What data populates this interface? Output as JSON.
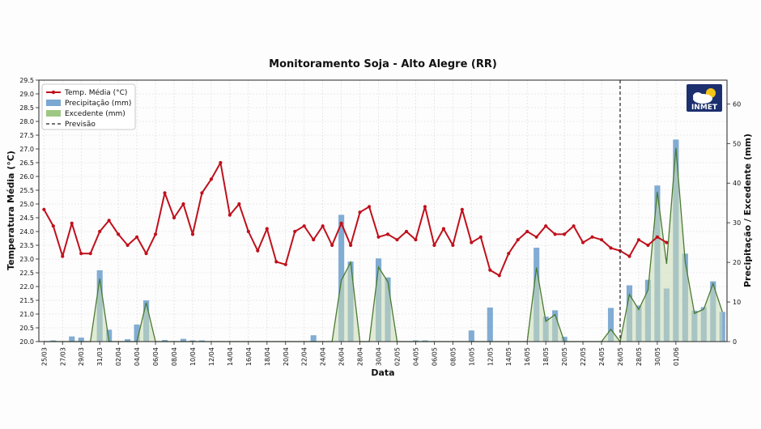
{
  "chart_data": {
    "type": "bar+line",
    "title": "Monitoramento Soja - Alto Alegre (RR)",
    "xlabel": "Data",
    "ylabel_left": "Temperatura Média (°C)",
    "ylabel_right": "Precipitação / Excedente (mm)",
    "ylim_left": [
      20.0,
      29.5
    ],
    "ylim_right": [
      0,
      66
    ],
    "yticks_left": [
      "20.0",
      "20.5",
      "21.0",
      "21.5",
      "22.0",
      "22.5",
      "23.0",
      "23.5",
      "24.0",
      "24.5",
      "25.0",
      "25.5",
      "26.0",
      "26.5",
      "27.0",
      "27.5",
      "28.0",
      "28.5",
      "29.0",
      "29.5"
    ],
    "yticks_right": [
      "0",
      "10",
      "20",
      "30",
      "40",
      "50",
      "60"
    ],
    "x_tick_labels": [
      "25/03",
      "27/03",
      "29/03",
      "31/03",
      "02/04",
      "04/04",
      "06/04",
      "08/04",
      "10/04",
      "12/04",
      "14/04",
      "16/04",
      "18/04",
      "20/04",
      "22/04",
      "24/04",
      "26/04",
      "28/04",
      "30/04",
      "02/05",
      "04/05",
      "06/05",
      "08/05",
      "10/05",
      "12/05",
      "14/05",
      "16/05",
      "18/05",
      "20/05",
      "22/05",
      "24/05",
      "26/05",
      "28/05",
      "30/05",
      "01/06"
    ],
    "grid": true,
    "legend_position": "top-left",
    "forecast_date": "26/05",
    "logo_text": "INMET",
    "colors": {
      "temperature": "#c0101c",
      "precipitation": "#7aa8d2",
      "excess_line": "#4a7a32",
      "excess_fill": "#c8dab4",
      "forecast": "#222222"
    },
    "series": [
      {
        "name": "Temp. Média (°C)",
        "type": "line",
        "axis": "left",
        "values": [
          24.8,
          24.2,
          23.1,
          24.3,
          23.2,
          23.2,
          24.0,
          24.4,
          23.9,
          23.5,
          23.8,
          23.2,
          23.9,
          25.4,
          24.5,
          25.0,
          23.9,
          25.4,
          25.9,
          26.5,
          24.6,
          25.0,
          24.0,
          23.3,
          24.1,
          22.9,
          22.8,
          24.0,
          24.2,
          23.7,
          24.2,
          23.5,
          24.3,
          23.5,
          24.7,
          24.9,
          23.8,
          23.9,
          23.7,
          24.0,
          23.7,
          24.9,
          23.5,
          24.1,
          23.5,
          24.8,
          23.6,
          23.8,
          22.6,
          22.4,
          23.2,
          23.7,
          24.0,
          23.8,
          24.2,
          23.9,
          23.9,
          24.2,
          23.6,
          23.8,
          23.7,
          23.4,
          23.3,
          23.1,
          23.7,
          23.5,
          23.8,
          23.6
        ]
      },
      {
        "name": "Precipitação (mm)",
        "type": "bar",
        "axis": "right",
        "values": [
          0,
          0.3,
          0,
          1.3,
          1,
          0,
          18,
          3,
          0,
          0.6,
          4.3,
          10.4,
          0,
          0.4,
          0,
          0.7,
          0.3,
          0.3,
          0,
          0,
          0,
          0,
          0,
          0,
          0,
          0,
          0,
          0,
          0,
          1.6,
          0,
          0,
          32,
          20.2,
          0,
          0,
          21,
          16.2,
          0,
          0,
          0.3,
          0.3,
          0,
          0,
          0,
          0,
          2.8,
          0,
          8.6,
          0,
          0,
          0,
          0,
          23.7,
          6.3,
          7.9,
          1.2,
          0,
          0,
          0,
          0,
          8.5,
          0,
          14.2,
          9.1,
          15.6,
          39.4,
          13.4,
          51,
          22.2,
          7.8,
          8.7,
          15.2,
          7.5
        ]
      },
      {
        "name": "Excedente (mm)",
        "type": "area",
        "axis": "right",
        "values": [
          0,
          0,
          0,
          0,
          0,
          0,
          15.9,
          0,
          0,
          0,
          0,
          9.8,
          0,
          0,
          0,
          0,
          0,
          0,
          0,
          0,
          0,
          0,
          0,
          0,
          0,
          0,
          0,
          0,
          0,
          0,
          0,
          0,
          15.5,
          20,
          0,
          0,
          18.8,
          15.1,
          0,
          0,
          0,
          0,
          0,
          0,
          0,
          0,
          0,
          0,
          0,
          0,
          0,
          0,
          0,
          18.7,
          5.1,
          6.8,
          0,
          0,
          0,
          0,
          0,
          3.1,
          0,
          11.9,
          8.1,
          13,
          37.8,
          19.6,
          48.9,
          20.2,
          7.1,
          8.2,
          14.6,
          7.5
        ]
      },
      {
        "name": "Previsão",
        "type": "vline",
        "axis": "x"
      }
    ]
  }
}
